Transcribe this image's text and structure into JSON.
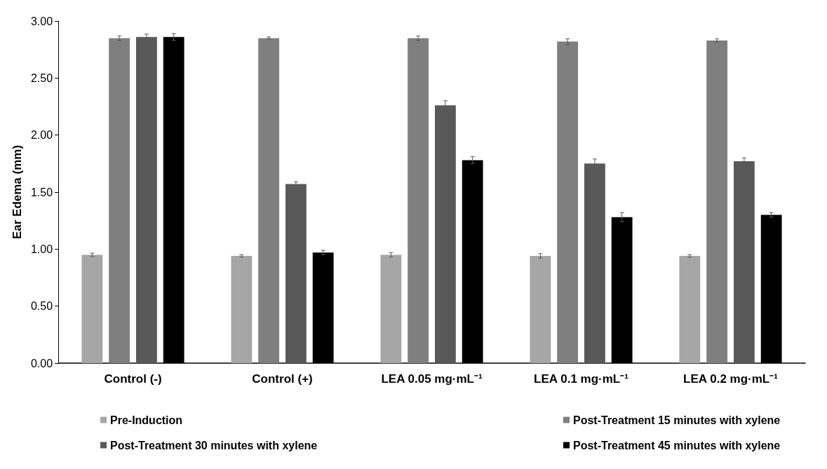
{
  "chart_data": {
    "type": "bar",
    "ylabel": "Ear Edema (mm)",
    "categories": [
      "Control (-)",
      "Control (+)",
      "LEA 0.05 mg·mL⁻¹",
      "LEA 0.1 mg·mL⁻¹",
      "LEA 0.2 mg·mL⁻¹"
    ],
    "series": [
      {
        "name": "Pre-Induction",
        "color": "#a6a6a6",
        "values": [
          0.95,
          0.94,
          0.95,
          0.94,
          0.94
        ],
        "errors": [
          0.015,
          0.01,
          0.02,
          0.02,
          0.01
        ]
      },
      {
        "name": "Post-Treatment 15 minutes with xylene",
        "color": "#7f7f7f",
        "values": [
          2.85,
          2.85,
          2.85,
          2.82,
          2.83
        ],
        "errors": [
          0.02,
          0.01,
          0.02,
          0.025,
          0.015
        ]
      },
      {
        "name": "Post-Treatment 30 minutes with xylene",
        "color": "#595959",
        "values": [
          2.86,
          1.57,
          2.26,
          1.75,
          1.77
        ],
        "errors": [
          0.025,
          0.02,
          0.04,
          0.04,
          0.03
        ]
      },
      {
        "name": "Post-Treatment 45 minutes with xylene",
        "color": "#000000",
        "values": [
          2.86,
          0.97,
          1.78,
          1.28,
          1.3
        ],
        "errors": [
          0.03,
          0.02,
          0.03,
          0.04,
          0.02
        ]
      }
    ],
    "ylim": [
      0,
      3
    ],
    "yticks": [
      {
        "value": 0,
        "label": "0.00"
      },
      {
        "value": 0.5,
        "label": "0.50"
      },
      {
        "value": 1,
        "label": "1.00"
      },
      {
        "value": 1.5,
        "label": "1.50"
      },
      {
        "value": 2,
        "label": "2.00"
      },
      {
        "value": 2.5,
        "label": "2.50"
      },
      {
        "value": 3,
        "label": "3.00"
      }
    ],
    "grid": false,
    "legend": "bottom"
  }
}
